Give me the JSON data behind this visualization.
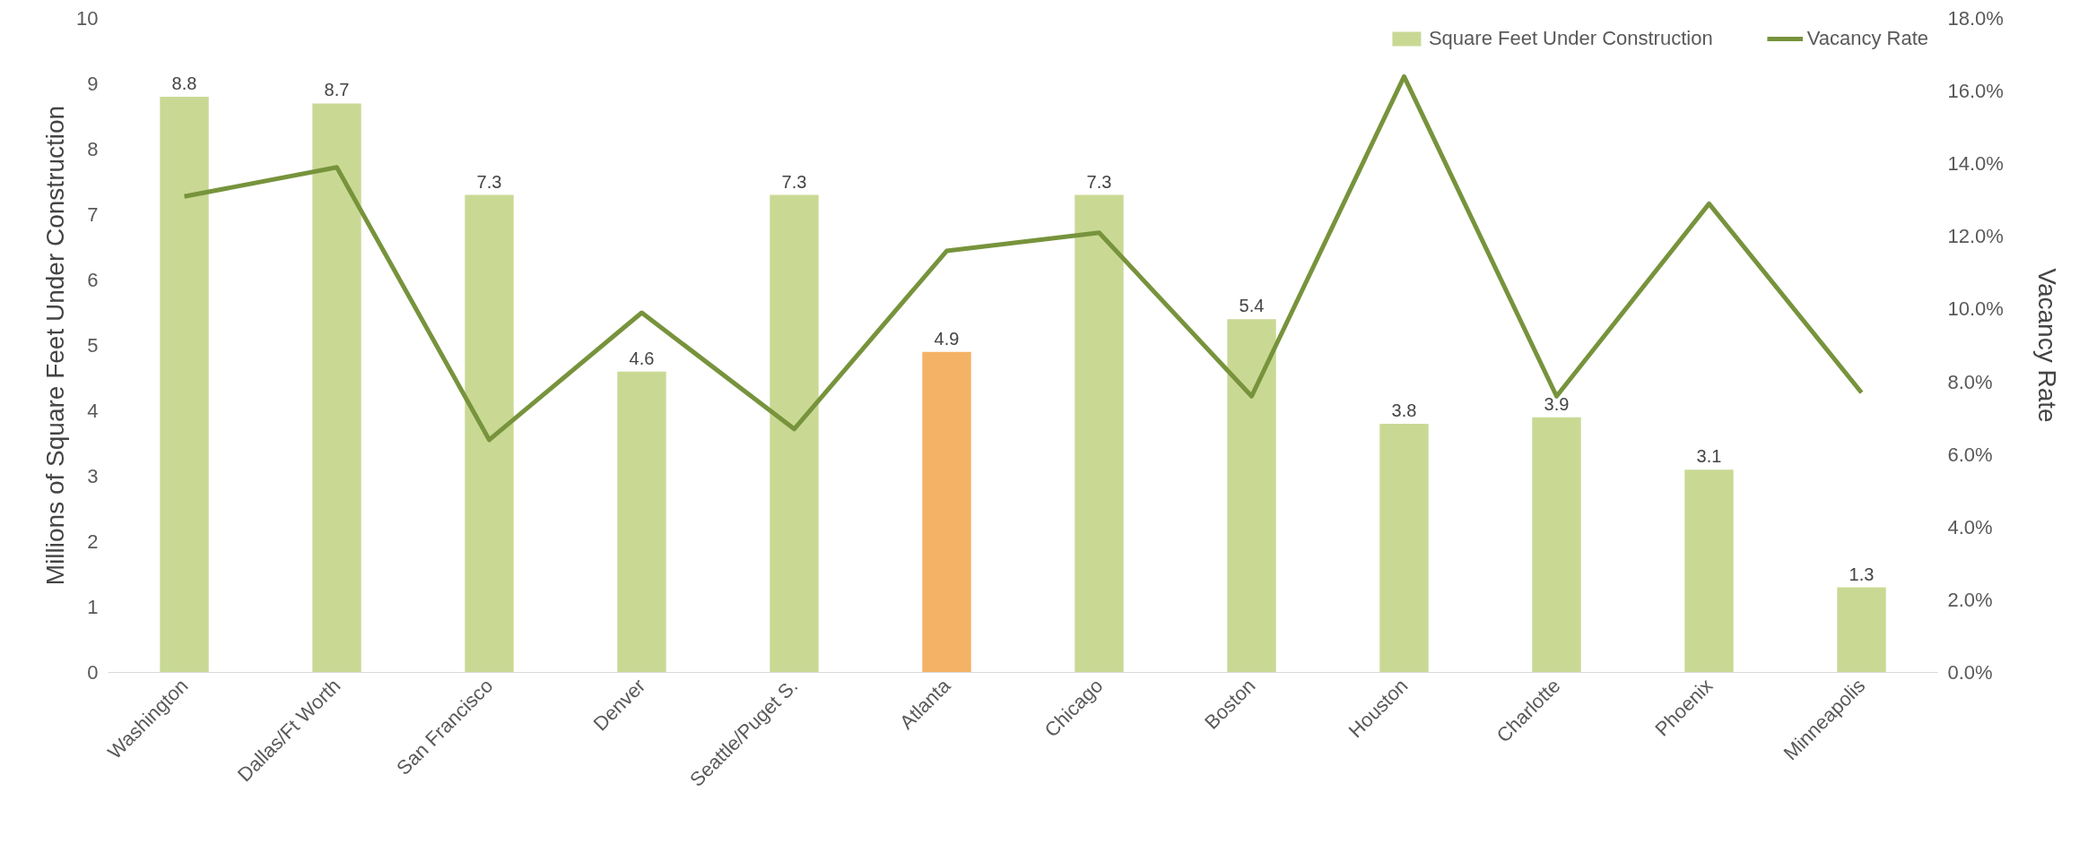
{
  "chart_data": {
    "type": "bar",
    "ylabel": "Millions of Square Feet Under Construction",
    "y2label": "Vacancy Rate",
    "categories": [
      "Washington",
      "Dallas/Ft Worth",
      "San Francisco",
      "Denver",
      "Seattle/Puget S.",
      "Atlanta",
      "Chicago",
      "Boston",
      "Houston",
      "Charlotte",
      "Phoenix",
      "Minneapolis"
    ],
    "series": [
      {
        "name": "Square Feet Under Construction",
        "color": "#c9d994",
        "colors": [
          "#c9d994",
          "#c9d994",
          "#c9d994",
          "#c9d994",
          "#c9d994",
          "#f4b266",
          "#c9d994",
          "#c9d994",
          "#c9d994",
          "#c9d994",
          "#c9d994",
          "#c9d994"
        ],
        "values": [
          8.8,
          8.7,
          7.3,
          4.6,
          7.3,
          4.9,
          7.3,
          5.4,
          3.8,
          3.9,
          3.1,
          1.3
        ],
        "data_labels": true
      },
      {
        "name": "Vacancy Rate",
        "type": "line",
        "axis": "y2",
        "color": "#77933c",
        "values": [
          13.1,
          13.9,
          6.4,
          9.9,
          6.7,
          11.6,
          12.1,
          7.6,
          16.4,
          7.6,
          12.9,
          7.7
        ]
      }
    ],
    "ylim": [
      0,
      10
    ],
    "yticks": [
      0,
      1,
      2,
      3,
      4,
      5,
      6,
      7,
      8,
      9,
      10
    ],
    "y2lim": [
      0,
      18
    ],
    "y2ticks": [
      {
        "value": 0,
        "label": "0.0%"
      },
      {
        "value": 2,
        "label": "2.0%"
      },
      {
        "value": 4,
        "label": "4.0%"
      },
      {
        "value": 6,
        "label": "6.0%"
      },
      {
        "value": 8,
        "label": "8.0%"
      },
      {
        "value": 10,
        "label": "10.0%"
      },
      {
        "value": 12,
        "label": "12.0%"
      },
      {
        "value": 14,
        "label": "14.0%"
      },
      {
        "value": 16,
        "label": "16.0%"
      },
      {
        "value": 18,
        "label": "18.0%"
      }
    ],
    "grid": false,
    "legend": "top right"
  }
}
